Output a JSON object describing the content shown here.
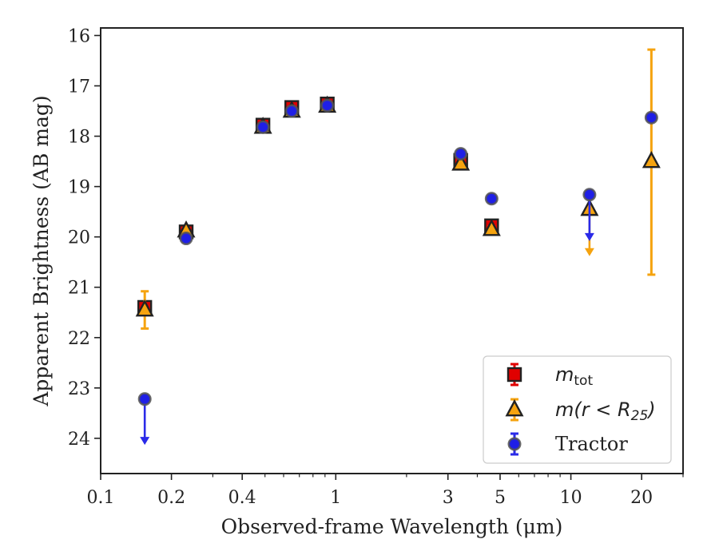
{
  "chart_data": {
    "type": "scatter",
    "xlabel": "Observed-frame Wavelength (μm)",
    "ylabel": "Apparent Brightness (AB mag)",
    "xscale": "log",
    "xlim": [
      0.1,
      30
    ],
    "ylim": [
      24.7,
      15.85
    ],
    "y_inverted": true,
    "x_ticks": [
      {
        "value": 0.1,
        "label": "0.1"
      },
      {
        "value": 0.2,
        "label": "0.2"
      },
      {
        "value": 0.4,
        "label": "0.4"
      },
      {
        "value": 1,
        "label": "1"
      },
      {
        "value": 3,
        "label": "3"
      },
      {
        "value": 5,
        "label": "5"
      },
      {
        "value": 10,
        "label": "10"
      },
      {
        "value": 20,
        "label": "20"
      }
    ],
    "x_minor_ticks": [
      0.3,
      0.5,
      0.6,
      0.7,
      0.8,
      0.9,
      2,
      4,
      6,
      7,
      8,
      9,
      30
    ],
    "y_ticks": [
      16,
      17,
      18,
      19,
      20,
      21,
      22,
      23,
      24
    ],
    "legend_position": "lower-right",
    "series": [
      {
        "name": "m_tot",
        "legend_main": "m",
        "legend_sub": "tot",
        "marker": "square",
        "color": "#e00000",
        "edge": "#222222",
        "errcolor": "#e00000",
        "points": [
          {
            "x": 0.154,
            "y": 21.4,
            "err": 0.1
          },
          {
            "x": 0.231,
            "y": 19.9,
            "err": 0.05
          },
          {
            "x": 0.49,
            "y": 17.78,
            "err": 0.05
          },
          {
            "x": 0.65,
            "y": 17.43,
            "err": 0.05
          },
          {
            "x": 0.92,
            "y": 17.36,
            "err": 0.05
          },
          {
            "x": 3.4,
            "y": 18.48,
            "err": 0.05
          },
          {
            "x": 4.6,
            "y": 19.78,
            "err": 0.05
          }
        ]
      },
      {
        "name": "m(r<R25)",
        "legend_main": "m(r < R",
        "legend_sub": "25",
        "legend_tail": ")",
        "marker": "triangle",
        "color": "#f5a30f",
        "edge": "#222222",
        "errcolor": "#f5a30f",
        "points": [
          {
            "x": 0.154,
            "y": 21.45,
            "err": 0.37
          },
          {
            "x": 0.231,
            "y": 19.88,
            "err": 0.05
          },
          {
            "x": 0.49,
            "y": 17.82,
            "err": 0.05
          },
          {
            "x": 0.65,
            "y": 17.5,
            "err": 0.05
          },
          {
            "x": 0.92,
            "y": 17.4,
            "err": 0.05
          },
          {
            "x": 3.4,
            "y": 18.55,
            "err": 0.05
          },
          {
            "x": 4.6,
            "y": 19.85,
            "err": 0.05
          },
          {
            "x": 12.0,
            "y": 19.45,
            "upper_limit_to": 20.35
          },
          {
            "x": 22.0,
            "y": 18.5,
            "err_low": 2.25,
            "err_high": 2.22
          }
        ]
      },
      {
        "name": "Tractor",
        "legend_main": "Tractor",
        "marker": "circle",
        "color": "#1f1fe6",
        "edge": "#555555",
        "errcolor": "#2a2ae8",
        "points": [
          {
            "x": 0.154,
            "y": 23.22,
            "upper_limit_to": 24.1
          },
          {
            "x": 0.231,
            "y": 20.03,
            "err": 0.05
          },
          {
            "x": 0.49,
            "y": 17.82,
            "err": 0.05
          },
          {
            "x": 0.65,
            "y": 17.5,
            "err": 0.05
          },
          {
            "x": 0.92,
            "y": 17.39,
            "err": 0.05
          },
          {
            "x": 3.4,
            "y": 18.35,
            "err": 0.05
          },
          {
            "x": 4.6,
            "y": 19.24,
            "err": 0.05
          },
          {
            "x": 12.0,
            "y": 19.16,
            "upper_limit_to": 20.05
          },
          {
            "x": 22.0,
            "y": 17.63,
            "err": 0.05
          }
        ]
      }
    ]
  }
}
